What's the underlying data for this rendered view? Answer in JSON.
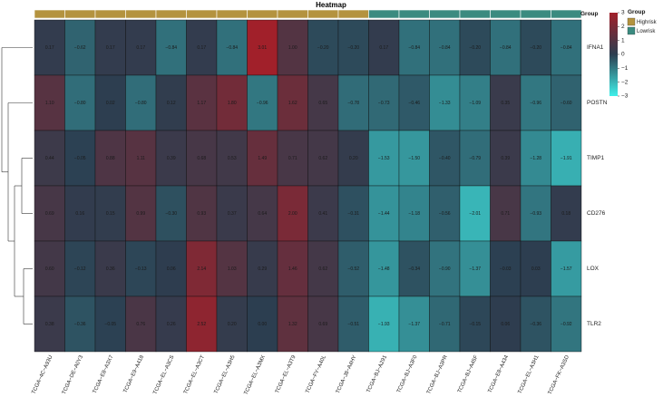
{
  "chart_data": {
    "type": "heatmap",
    "title": "Heatmap",
    "annotation_label": "Group",
    "rows": [
      "IFNA1",
      "POSTN",
      "TIMP1",
      "CD276",
      "LOX",
      "TLR2"
    ],
    "columns": [
      "TCGA−4C−A93U",
      "TCGA−DE−A0Y3",
      "TCGA−E8−A3X7",
      "TCGA−E9−A418",
      "TCGA−EL−A3CS",
      "TCGA−EL−A3CT",
      "TCGA−EL−A3H5",
      "TCGA−EL−A3MX",
      "TCGA−EL−A3T9",
      "TCGA−FY−A40L",
      "TCGA−J8−A4HY",
      "TCGA−BJ−A291",
      "TCGA−BJ−A3F0",
      "TCGA−BJ−A3PR",
      "TCGA−BJ−A45F",
      "TCGA−E8−A434",
      "TCGA−EL−A3H1",
      "TCGA−FK−A3SD"
    ],
    "column_groups": [
      "Highrisk",
      "Highrisk",
      "Highrisk",
      "Highrisk",
      "Highrisk",
      "Highrisk",
      "Highrisk",
      "Highrisk",
      "Highrisk",
      "Highrisk",
      "Highrisk",
      "Lowrisk",
      "Lowrisk",
      "Lowrisk",
      "Lowrisk",
      "Lowrisk",
      "Lowrisk",
      "Lowrisk"
    ],
    "values": [
      [
        0.17,
        -0.62,
        0.17,
        0.17,
        -0.84,
        0.17,
        -0.84,
        3.01,
        1.0,
        -0.2,
        -0.2,
        0.17,
        -0.84,
        -0.84,
        -0.2,
        -0.84,
        -0.2,
        -0.84
      ],
      [
        1.1,
        -0.8,
        0.02,
        -0.8,
        0.12,
        1.17,
        1.8,
        -0.96,
        1.62,
        0.65,
        -0.78,
        -0.73,
        -0.46,
        -1.33,
        -1.09,
        0.35,
        -0.96,
        -0.6
      ],
      [
        0.44,
        -0.05,
        0.88,
        1.11,
        0.39,
        0.68,
        0.53,
        1.49,
        0.71,
        0.62,
        0.2,
        -1.53,
        -1.5,
        -0.4,
        -0.79,
        0.39,
        -1.28,
        -1.91
      ],
      [
        0.69,
        0.16,
        0.15,
        0.99,
        -0.3,
        0.93,
        0.37,
        0.64,
        2.0,
        0.41,
        -0.31,
        -1.44,
        -1.18,
        -0.56,
        -2.01,
        0.71,
        -0.93,
        0.18
      ],
      [
        0.6,
        -0.12,
        0.36,
        -0.13,
        0.06,
        2.14,
        1.03,
        0.29,
        1.46,
        0.62,
        -0.52,
        -1.48,
        -0.34,
        -0.9,
        -1.37,
        -0.03,
        0.03,
        -1.57
      ],
      [
        0.38,
        -0.36,
        -0.05,
        0.76,
        0.26,
        2.52,
        0.2,
        0.0,
        1.32,
        0.69,
        -0.51,
        -1.93,
        -1.37,
        -0.71,
        -0.15,
        0.06,
        -0.36,
        -0.92
      ]
    ],
    "color_scale": {
      "min": -3,
      "mid": 0,
      "max": 3,
      "stops": [
        [
          -3,
          "#3ff0ea"
        ],
        [
          0,
          "#2c3e50"
        ],
        [
          3,
          "#a1202a"
        ]
      ]
    },
    "colorbar_ticks": [
      "3",
      "2",
      "1",
      "0",
      "−1",
      "−2",
      "−3"
    ],
    "colorbar_tick_values": [
      3,
      2,
      1,
      0,
      -1,
      -2,
      -3
    ],
    "legend": {
      "title": "Group",
      "entries": [
        {
          "label": "Highrisk",
          "color": "#b4933f"
        },
        {
          "label": "Lowrisk",
          "color": "#3b8b80"
        }
      ]
    }
  }
}
